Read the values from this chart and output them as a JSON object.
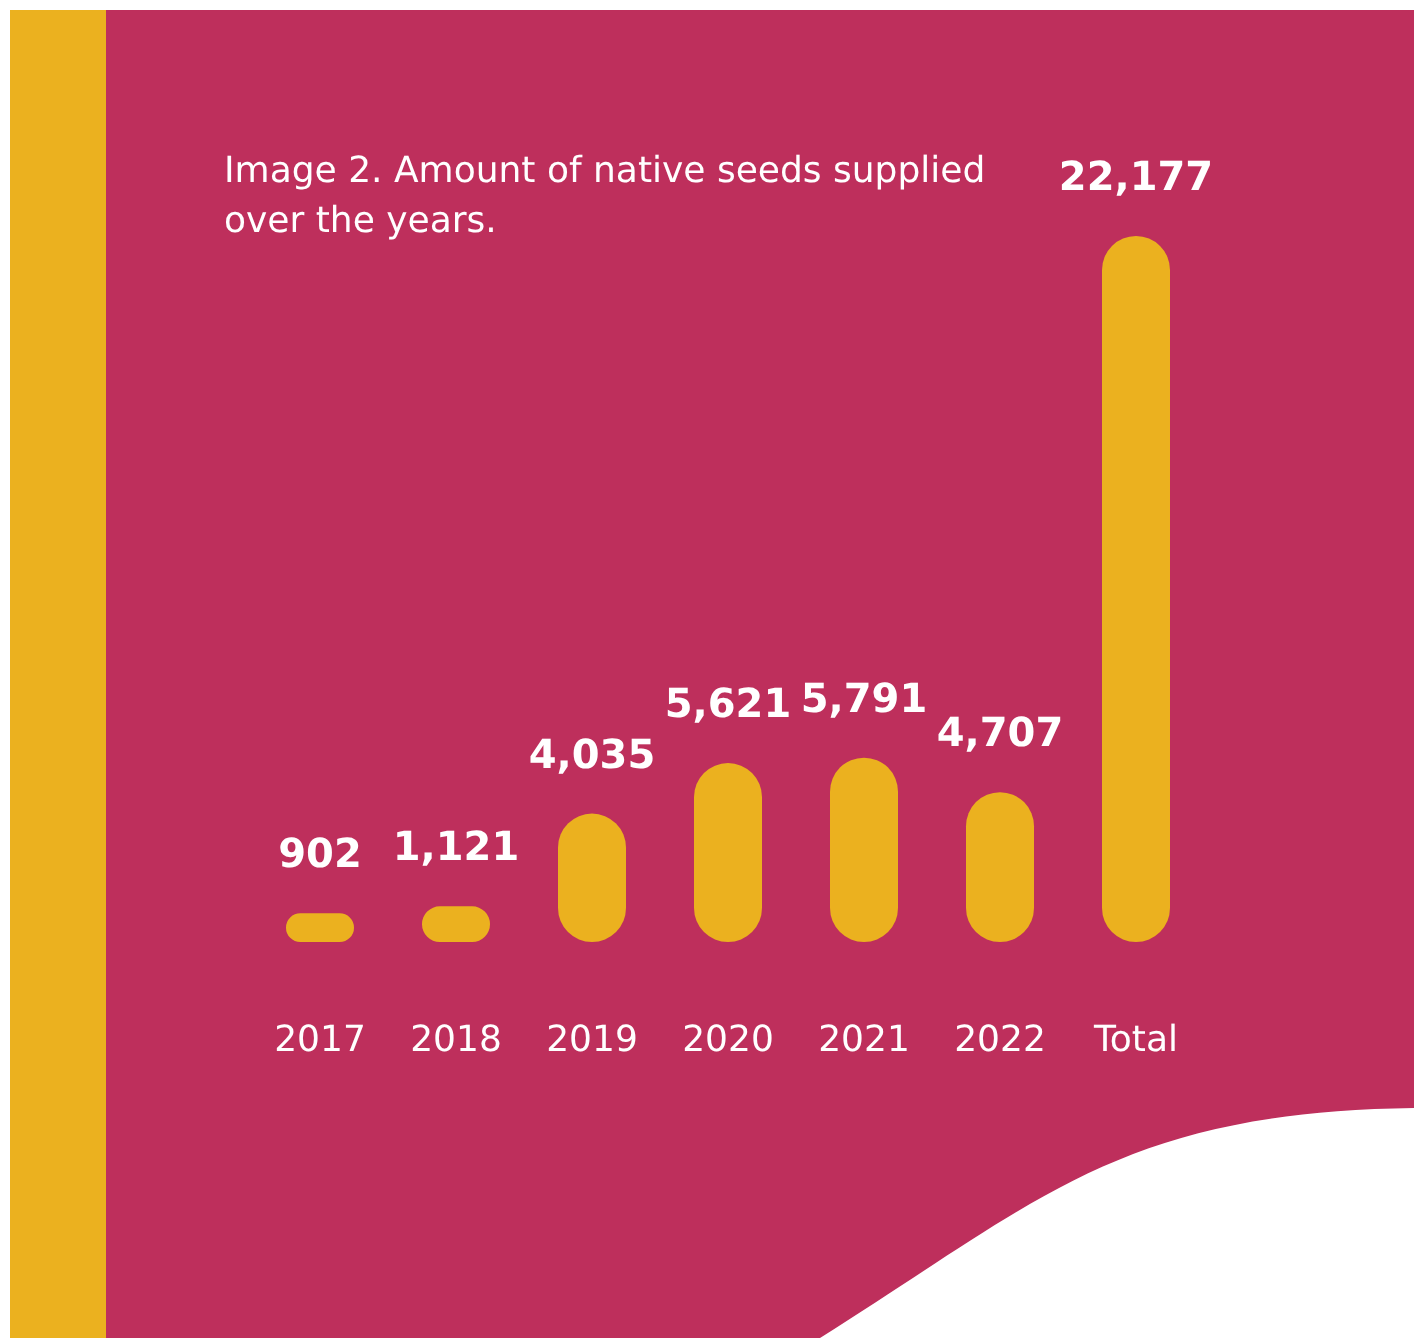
{
  "chart_data": {
    "type": "bar",
    "title": "Image 2. Amount of native seeds supplied over the years.",
    "categories": [
      "2017",
      "2018",
      "2019",
      "2020",
      "2021",
      "2022",
      "Total"
    ],
    "values": [
      902,
      1121,
      4035,
      5621,
      5791,
      4707,
      22177
    ],
    "value_labels": [
      "902",
      "1,121",
      "4,035",
      "5,621",
      "5,791",
      "4,707",
      "22,177"
    ],
    "color": "#ebb11f"
  }
}
